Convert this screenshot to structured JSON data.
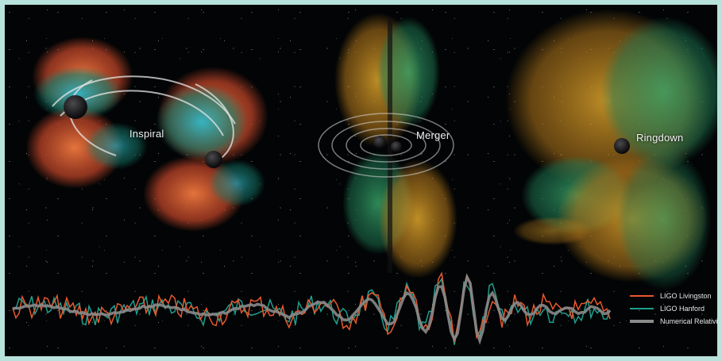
{
  "phases": {
    "inspiral": "Inspiral",
    "merger": "Merger",
    "ringdown": "Ringdown"
  },
  "legend": {
    "livingston": {
      "label": "LIGO Livingston",
      "color": "#e8582e"
    },
    "hanford": {
      "label": "LIGO Hanford",
      "color": "#1f9e8e"
    },
    "relativity": {
      "label": "Numerical Relativity",
      "color": "#8a8a8a"
    }
  },
  "colors": {
    "lobe_orange": "#e8632f",
    "lobe_teal": "#1da38f",
    "lobe_yellow": "#d9a227",
    "black_hole": "#1b1b1d",
    "frame": "#b8e2dc"
  }
}
